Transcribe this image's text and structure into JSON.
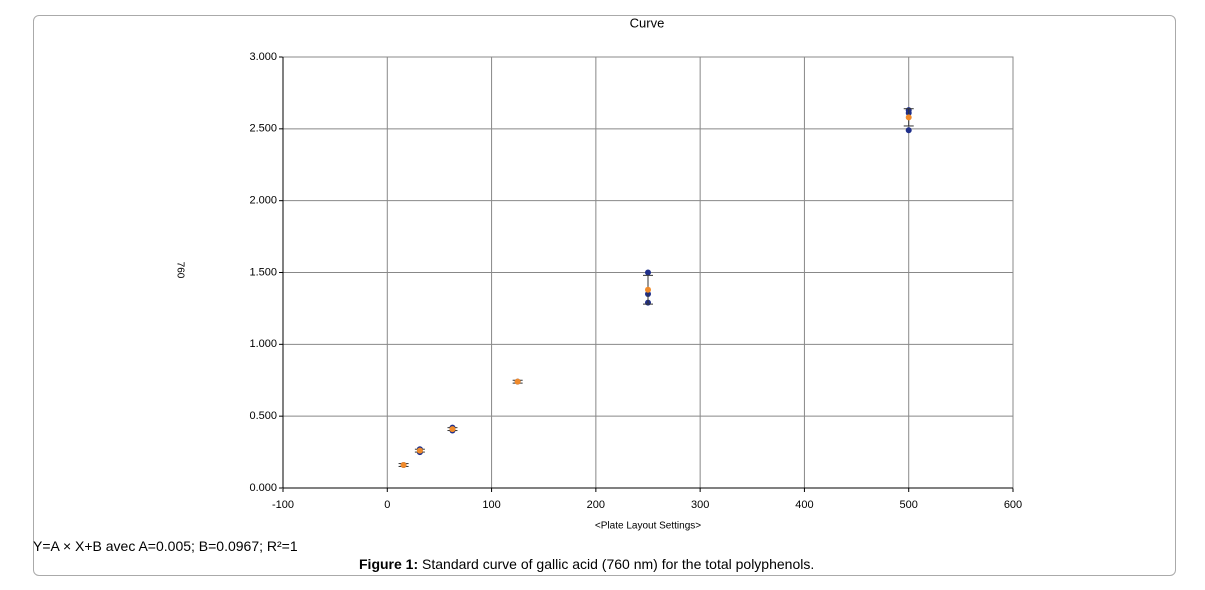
{
  "chart_data": {
    "type": "scatter",
    "title": "Curve",
    "x_label": "<Plate Layout Settings>",
    "y_label": "760",
    "xlim": [
      -100,
      600
    ],
    "xticks": [
      -100,
      0,
      100,
      200,
      300,
      400,
      500,
      600
    ],
    "ylim": [
      0,
      3
    ],
    "yticks": [
      {
        "value": 0,
        "label": "0.000"
      },
      {
        "value": 0.5,
        "label": "0.500"
      },
      {
        "value": 1,
        "label": "1.000"
      },
      {
        "value": 1.5,
        "label": "1.500"
      },
      {
        "value": 2,
        "label": "2.000"
      },
      {
        "value": 2.5,
        "label": "2.500"
      },
      {
        "value": 3,
        "label": "3.000"
      }
    ],
    "grid": true,
    "series": [
      {
        "color": "#1f2f8a",
        "x": [
          15.625,
          31.25,
          31.25,
          62.5,
          62.5,
          125,
          250,
          250,
          250,
          500,
          500,
          500
        ],
        "values": [
          0.16,
          0.27,
          0.25,
          0.42,
          0.4,
          0.74,
          1.5,
          1.35,
          1.29,
          2.63,
          2.61,
          2.49
        ]
      },
      {
        "color": "#f08a2a",
        "x": [
          15.625,
          31.25,
          62.5,
          125,
          250,
          500
        ],
        "values": [
          0.16,
          0.26,
          0.41,
          0.74,
          1.38,
          2.58
        ],
        "errors": [
          0.01,
          0.01,
          0.01,
          0.01,
          0.1,
          0.06
        ]
      }
    ],
    "equation": "Y=A × X+B avec A=0.005; B=0.0967; R²=1",
    "caption_label": "Figure 1:",
    "caption_text": "Standard curve of gallic acid (760 nm) for the total polyphenols."
  }
}
